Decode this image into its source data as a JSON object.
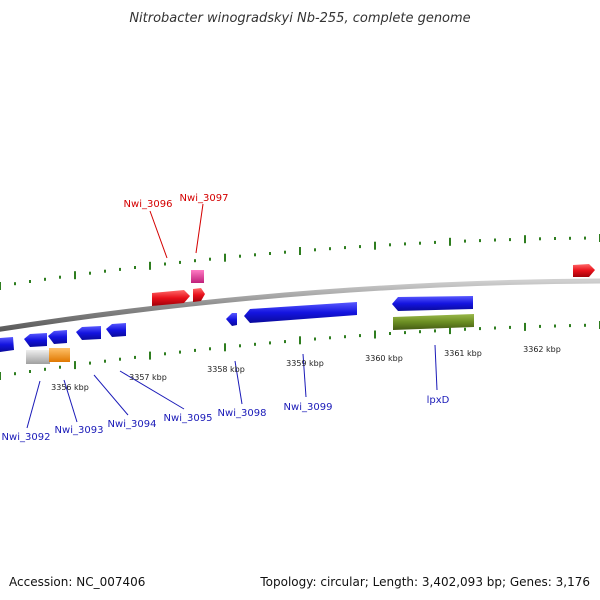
{
  "title": "Nitrobacter winogradskyi Nb-255, complete genome",
  "footer": {
    "accession": "Accession: NC_007406",
    "summary": "Topology: circular; Length: 3,402,093 bp; Genes: 3,176"
  },
  "colors": {
    "backbone": "#8c8c8c",
    "tick": "#2e7d1f",
    "gene_forward": "#e8101a",
    "gene_reverse": "#1414e0",
    "gene_pink": "#e0339a",
    "gene_olive": "#6b8e23",
    "gene_gray": "#c8c8c8",
    "gene_orange": "#ff9a1a",
    "label_red": "#d40000",
    "label_blue": "#1a1ab8"
  },
  "scale_labels": [
    "3356 kbp",
    "3357 kbp",
    "3358 kbp",
    "3359 kbp",
    "3360 kbp",
    "3361 kbp",
    "3362 kbp"
  ],
  "gene_labels": [
    "Nwi_3096",
    "Nwi_3097",
    "Nwi_3092",
    "Nwi_3093",
    "Nwi_3094",
    "Nwi_3095",
    "Nwi_3098",
    "Nwi_3099",
    "lpxD"
  ]
}
